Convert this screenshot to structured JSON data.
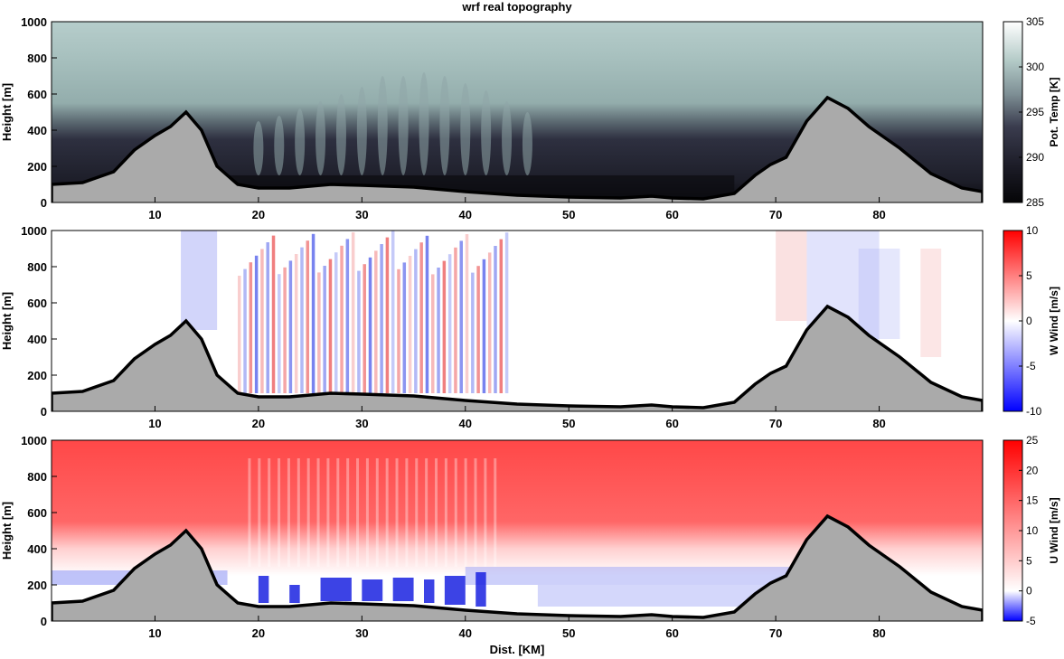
{
  "figure": {
    "title": "wrf real topography",
    "xlabel": "Dist. [KM]"
  },
  "chart_data": [
    {
      "type": "heatmap",
      "title": "wrf real topography",
      "xlabel": "",
      "ylabel": "Height [m]",
      "xlim": [
        0,
        90
      ],
      "ylim": [
        0,
        1000
      ],
      "xticks": [
        10,
        20,
        30,
        40,
        50,
        60,
        70,
        80
      ],
      "yticks": [
        0,
        200,
        400,
        600,
        800,
        1000
      ],
      "colorbar": {
        "label": "Pot. Temp [K]",
        "range": [
          285,
          305
        ],
        "ticks": [
          285,
          290,
          295,
          300,
          305
        ],
        "colors": [
          "#0a0a0e",
          "#2a2b3b",
          "#6e7e84",
          "#c9dcdb",
          "#ffffff"
        ]
      },
      "field": "potential_temperature",
      "grid": false
    },
    {
      "type": "heatmap",
      "title": "",
      "xlabel": "",
      "ylabel": "Height [m]",
      "xlim": [
        0,
        90
      ],
      "ylim": [
        0,
        1000
      ],
      "xticks": [
        10,
        20,
        30,
        40,
        50,
        60,
        70,
        80
      ],
      "yticks": [
        0,
        200,
        400,
        600,
        800,
        1000
      ],
      "colorbar": {
        "label": "W Wind [m/s]",
        "range": [
          -10,
          10
        ],
        "ticks": [
          -10,
          -5,
          0,
          5,
          10
        ],
        "colors": [
          "#0000ff",
          "#ffffff",
          "#ff0000"
        ]
      },
      "field": "vertical_wind",
      "grid": false
    },
    {
      "type": "heatmap",
      "title": "",
      "xlabel": "Dist. [KM]",
      "ylabel": "Height [m]",
      "xlim": [
        0,
        90
      ],
      "ylim": [
        0,
        1000
      ],
      "xticks": [
        10,
        20,
        30,
        40,
        50,
        60,
        70,
        80
      ],
      "yticks": [
        0,
        200,
        400,
        600,
        800,
        1000
      ],
      "colorbar": {
        "label": "U Wind [m/s]",
        "range": [
          -5,
          25
        ],
        "ticks": [
          -5,
          0,
          5,
          10,
          15,
          20,
          25
        ],
        "colors": [
          "#0000ff",
          "#ffffff",
          "#ff0000"
        ]
      },
      "field": "horizontal_wind",
      "grid": false
    }
  ],
  "terrain": {
    "x": [
      0,
      3,
      6,
      8,
      10,
      11.5,
      13,
      14.5,
      16,
      18,
      20,
      23,
      27,
      30,
      35,
      40,
      45,
      50,
      55,
      58,
      60,
      63,
      66,
      68,
      69.5,
      71,
      73,
      75,
      77,
      79,
      82,
      85,
      88,
      90
    ],
    "height": [
      100,
      110,
      170,
      290,
      370,
      420,
      500,
      400,
      200,
      100,
      80,
      80,
      100,
      95,
      85,
      60,
      40,
      30,
      25,
      35,
      25,
      20,
      50,
      150,
      210,
      250,
      450,
      580,
      520,
      420,
      300,
      160,
      80,
      60
    ],
    "fill": "#aaaaaa",
    "line": "#000000"
  }
}
